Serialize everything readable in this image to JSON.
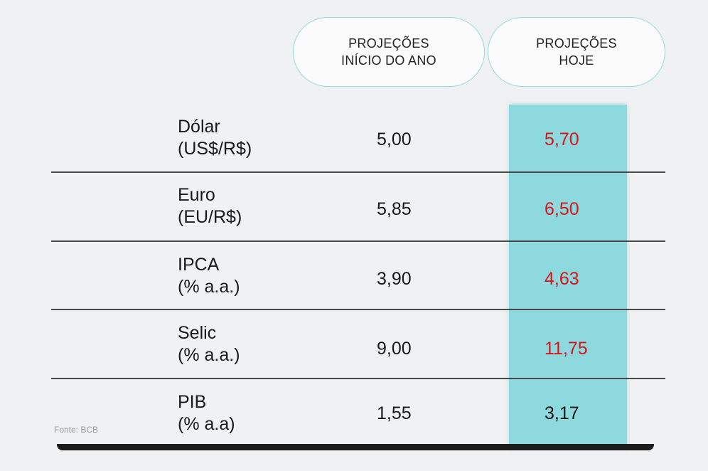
{
  "headers": {
    "start_line1": "PROJEÇÕES",
    "start_line2": "INÍCIO DO ANO",
    "today_line1": "PROJEÇÕES",
    "today_line2": "HOJE"
  },
  "rows": [
    {
      "label1": "Dólar",
      "label2": "(US$/R$)",
      "start": "5,00",
      "today": "5,70"
    },
    {
      "label1": "Euro",
      "label2": "(EU/R$)",
      "start": "5,85",
      "today": "6,50"
    },
    {
      "label1": "IPCA",
      "label2": "(% a.a.)",
      "start": "3,90",
      "today": "4,63"
    },
    {
      "label1": "Selic",
      "label2": "(% a.a.)",
      "start": "9,00",
      "today": "11,75"
    },
    {
      "label1": "PIB",
      "label2": "(% a.a)",
      "start": "1,55",
      "today": "3,17"
    }
  ],
  "source": "Fonte: BCB",
  "colors": {
    "background": "#f0f1f3",
    "highlight": "#8dd9dd",
    "pill_border": "#8fd9df",
    "increase_text": "#d4161a",
    "text": "#1a1a1a"
  }
}
